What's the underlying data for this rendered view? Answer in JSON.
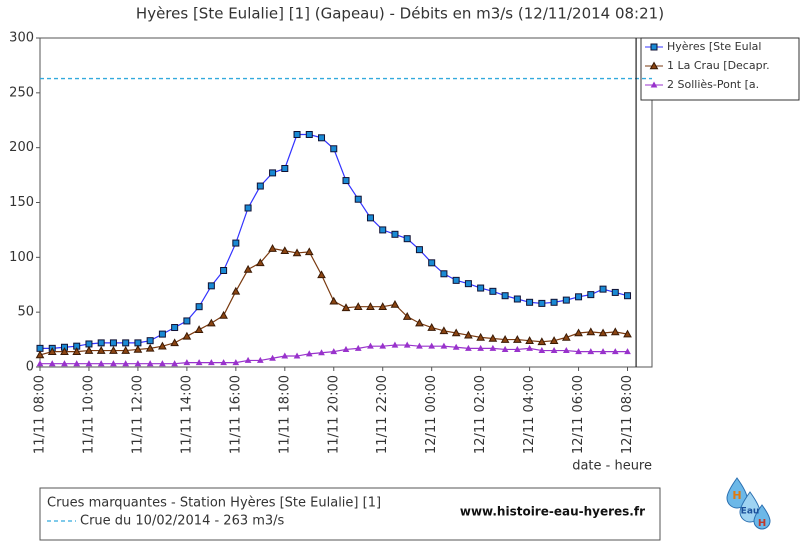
{
  "chart_data": {
    "type": "line",
    "title": "Hyères [Ste Eulalie] [1] (Gapeau) - Débits en m3/s (12/11/2014 08:21)",
    "x_label": "date - heure",
    "x": [
      "11/11 08:00",
      "11/11 08:30",
      "11/11 09:00",
      "11/11 09:30",
      "11/11 10:00",
      "11/11 10:30",
      "11/11 11:00",
      "11/11 11:30",
      "11/11 12:00",
      "11/11 12:30",
      "11/11 13:00",
      "11/11 13:30",
      "11/11 14:00",
      "11/11 14:30",
      "11/11 15:00",
      "11/11 15:30",
      "11/11 16:00",
      "11/11 16:30",
      "11/11 17:00",
      "11/11 17:30",
      "11/11 18:00",
      "11/11 18:30",
      "11/11 19:00",
      "11/11 19:30",
      "11/11 20:00",
      "11/11 20:30",
      "11/11 21:00",
      "11/11 21:30",
      "11/11 22:00",
      "11/11 22:30",
      "11/11 23:00",
      "11/11 23:30",
      "12/11 00:00",
      "12/11 00:30",
      "12/11 01:00",
      "12/11 01:30",
      "12/11 02:00",
      "12/11 02:30",
      "12/11 03:00",
      "12/11 03:30",
      "12/11 04:00",
      "12/11 04:30",
      "12/11 05:00",
      "12/11 05:30",
      "12/11 06:00",
      "12/11 06:30",
      "12/11 07:00",
      "12/11 07:30",
      "12/11 08:00"
    ],
    "series": [
      {
        "name": "Hyères [Ste Eulal",
        "color": "#3333ff",
        "marker_color": "#1a8ad4",
        "marker": "square",
        "values": [
          17,
          17,
          18,
          19,
          21,
          22,
          22,
          22,
          22,
          24,
          30,
          36,
          42,
          55,
          74,
          88,
          113,
          145,
          165,
          177,
          181,
          212,
          212,
          209,
          199,
          170,
          153,
          136,
          125,
          121,
          117,
          107,
          95,
          85,
          79,
          76,
          72,
          69,
          65,
          62,
          59,
          58,
          59,
          61,
          64,
          66,
          71,
          68,
          65
        ]
      },
      {
        "name": "1 La Crau [Decapr.",
        "color": "#7a3a10",
        "marker_color": "#8b4513",
        "marker": "triangle",
        "values": [
          11,
          14,
          14,
          14,
          15,
          15,
          15,
          15,
          16,
          17,
          19,
          22,
          28,
          34,
          40,
          47,
          69,
          89,
          95,
          108,
          106,
          104,
          105,
          84,
          60,
          54,
          55,
          55,
          55,
          57,
          46,
          40,
          36,
          33,
          31,
          29,
          27,
          26,
          25,
          25,
          24,
          23,
          24,
          27,
          31,
          32,
          31,
          32,
          30
        ]
      },
      {
        "name": "2 Solliès-Pont [a.",
        "color": "#9933cc",
        "marker_color": "#9933cc",
        "marker": "small-triangle",
        "values": [
          3,
          3,
          3,
          3,
          3,
          3,
          3,
          3,
          3,
          3,
          3,
          3,
          4,
          4,
          4,
          4,
          4,
          6,
          6,
          8,
          10,
          10,
          12,
          13,
          14,
          16,
          17,
          19,
          19,
          20,
          20,
          19,
          19,
          19,
          18,
          17,
          17,
          17,
          16,
          16,
          17,
          15,
          15,
          15,
          14,
          14,
          14,
          14,
          14
        ]
      }
    ],
    "xlim": [
      "11/11 08:00",
      "12/11 09:00"
    ],
    "xticks": [
      "11/11 08:00",
      "11/11 10:00",
      "11/11 12:00",
      "11/11 14:00",
      "11/11 16:00",
      "11/11 18:00",
      "11/11 20:00",
      "11/11 22:00",
      "12/11 00:00",
      "12/11 02:00",
      "12/11 04:00",
      "12/11 06:00",
      "12/11 08:00"
    ],
    "ylim": [
      0,
      300
    ],
    "yticks": [
      0,
      50,
      100,
      150,
      200,
      250,
      300
    ],
    "current_time": "12/11 08:21",
    "reference_line": {
      "value": 263,
      "color": "#33aadd"
    },
    "footer": {
      "title": "Crues marquantes - Station Hyères [Ste Eulalie] [1]",
      "entry": "Crue du 10/02/2014 - 263 m3/s",
      "site": "www.histoire-eau-hyeres.fr"
    },
    "logo": {
      "top": "H",
      "middle": "Eau",
      "bottom": "H"
    }
  }
}
